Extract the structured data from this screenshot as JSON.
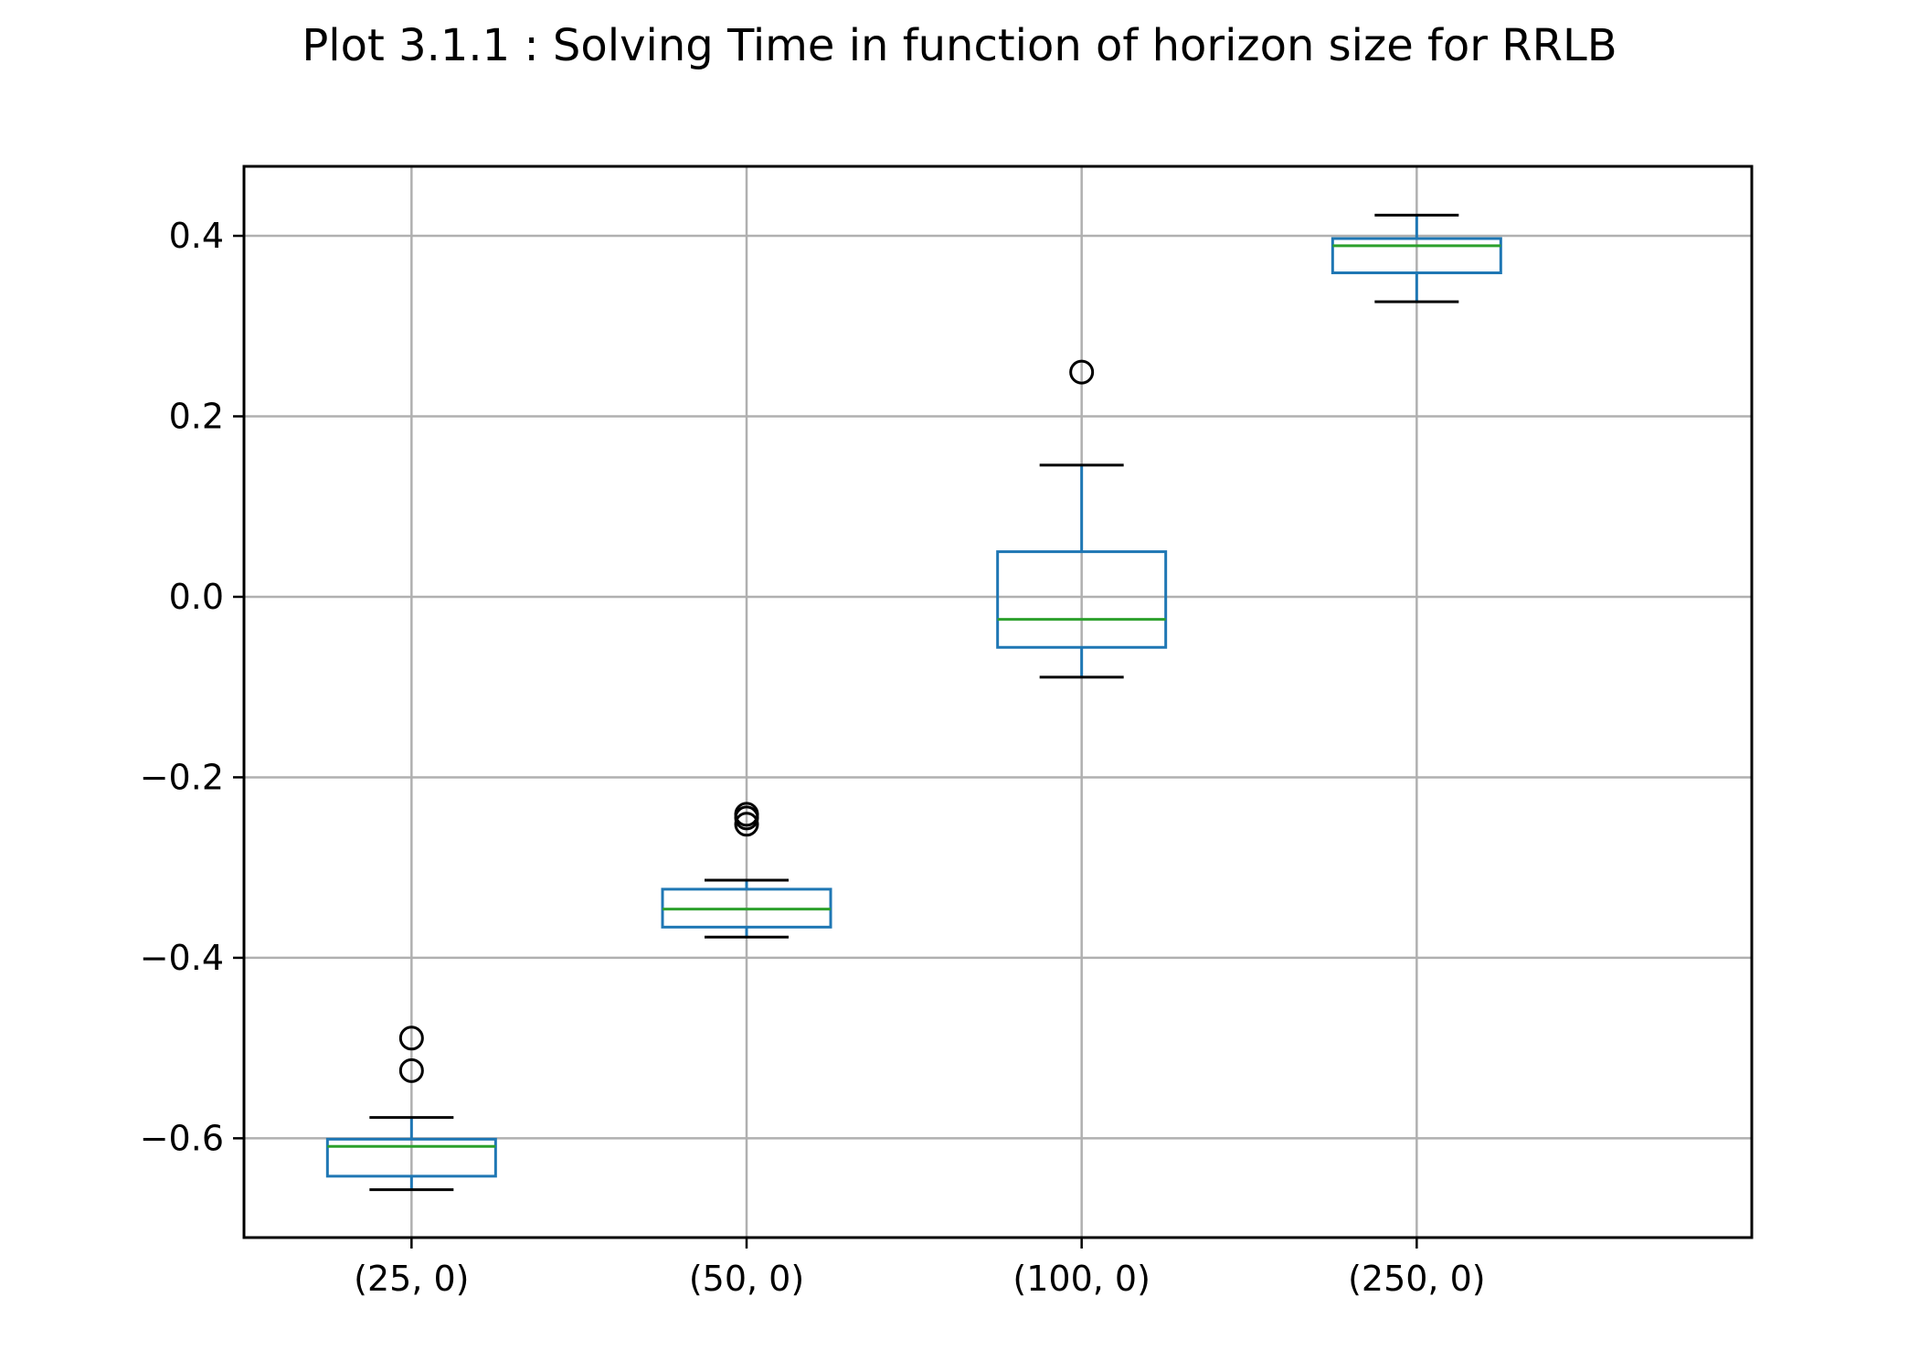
{
  "chart_data": {
    "type": "box",
    "title": "Plot 3.1.1 : Solving Time in function of horizon size for RRLB",
    "xlabel": "",
    "ylabel": "",
    "categories": [
      "(25, 0)",
      "(50, 0)",
      "(100, 0)",
      "(250, 0)"
    ],
    "boxes": [
      {
        "category": "(25, 0)",
        "whisker_low": -0.657,
        "q1": -0.642,
        "median": -0.609,
        "q3": -0.601,
        "whisker_high": -0.577,
        "outliers": [
          -0.489,
          -0.525
        ]
      },
      {
        "category": "(50, 0)",
        "whisker_low": -0.377,
        "q1": -0.366,
        "median": -0.346,
        "q3": -0.324,
        "whisker_high": -0.314,
        "outliers": [
          -0.241,
          -0.252,
          -0.245
        ]
      },
      {
        "category": "(100, 0)",
        "whisker_low": -0.089,
        "q1": -0.056,
        "median": -0.025,
        "q3": 0.05,
        "whisker_high": 0.146,
        "outliers": [
          0.249
        ]
      },
      {
        "category": "(250, 0)",
        "whisker_low": 0.327,
        "q1": 0.359,
        "median": 0.389,
        "q3": 0.397,
        "whisker_high": 0.423,
        "outliers": []
      }
    ],
    "yticks": [
      0.4,
      0.2,
      0.0,
      -0.2,
      -0.4,
      -0.6
    ],
    "ytick_labels": [
      "0.4",
      "0.2",
      "0.0",
      "−0.2",
      "−0.4",
      "−0.6"
    ],
    "ylim": [
      -0.71,
      0.477
    ],
    "grid": true,
    "colors": {
      "box": "#1f77b4",
      "median": "#2ca02c",
      "whisker_cap": "#000000",
      "grid": "#b0b0b0",
      "outlier": "#000000"
    }
  }
}
